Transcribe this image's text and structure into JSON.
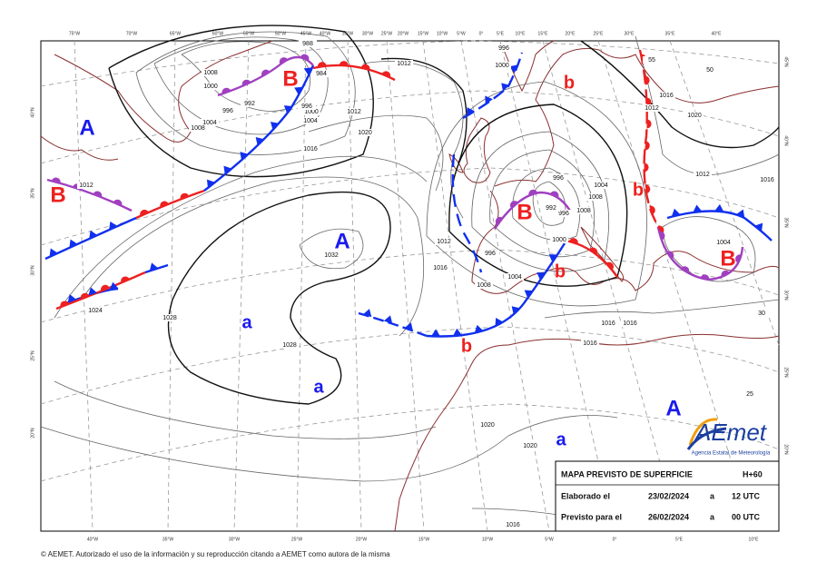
{
  "map": {
    "top_longitudes": [
      "75°W",
      "70°W",
      "65°W",
      "60°W",
      "55°W",
      "50°W",
      "45°W",
      "40°W",
      "35°W",
      "30°W",
      "25°W",
      "20°W",
      "15°W",
      "10°W",
      "5°W",
      "0°",
      "5°E",
      "10°E",
      "15°E",
      "20°E",
      "25°E",
      "30°E",
      "35°E",
      "40°E"
    ],
    "bottom_longitudes": [
      "40°W",
      "35°W",
      "30°W",
      "25°W",
      "20°W",
      "15°W",
      "10°W",
      "5°W",
      "0°",
      "5°E",
      "10°E"
    ],
    "left_latitudes": [
      "40°N",
      "35°N",
      "30°N",
      "25°N",
      "20°N"
    ],
    "right_latitudes": [
      "45°N",
      "40°N",
      "35°N",
      "30°N",
      "25°N",
      "20°N"
    ],
    "pressure_centers": [
      {
        "label": "A",
        "color": "#1a1aee"
      },
      {
        "label": "B",
        "color": "#ee2020"
      },
      {
        "label": "B",
        "color": "#ee2020"
      },
      {
        "label": "A",
        "color": "#1a1aee"
      },
      {
        "label": "a",
        "color": "#1a1aee"
      },
      {
        "label": "a",
        "color": "#1a1aee"
      },
      {
        "label": "b",
        "color": "#ee2020"
      },
      {
        "label": "B",
        "color": "#ee2020"
      },
      {
        "label": "b",
        "color": "#ee2020"
      },
      {
        "label": "b",
        "color": "#ee2020"
      },
      {
        "label": "b",
        "color": "#ee2020"
      },
      {
        "label": "B",
        "color": "#ee2020"
      },
      {
        "label": "A",
        "color": "#1a1aee"
      },
      {
        "label": "a",
        "color": "#1a1aee"
      }
    ],
    "isobar_labels": [
      "1012",
      "1012",
      "1012",
      "1020",
      "1016",
      "1004",
      "1000",
      "996",
      "992",
      "996",
      "1004",
      "1008",
      "1000",
      "1008",
      "984",
      "988",
      "1032",
      "1028",
      "1028",
      "1024",
      "1012",
      "1016",
      "1008",
      "1004",
      "996",
      "1000",
      "996",
      "992",
      "996",
      "1004",
      "1008",
      "1008",
      "1012",
      "1016",
      "1012",
      "1020",
      "1016",
      "1004",
      "1016",
      "1016",
      "1016",
      "1020",
      "1020",
      "1016",
      "1000",
      "996",
      "55",
      "50",
      "30",
      "25"
    ]
  },
  "info_box": {
    "title": "MAPA PREVISTO DE SUPERFICIE",
    "lead_time": "H+60",
    "rows": [
      [
        "Elaborado el",
        "23/02/2024",
        "a",
        "12 UTC"
      ],
      [
        "Previsto para el",
        "26/02/2024",
        "a",
        "00 UTC"
      ]
    ]
  },
  "logo": {
    "name": "AEmet",
    "subtitle": "Agencia Estatal de Meteorología"
  },
  "footer": "© AEMET. Autorizado el uso de la información y su reproducción citando a AEMET como autora de la misma"
}
